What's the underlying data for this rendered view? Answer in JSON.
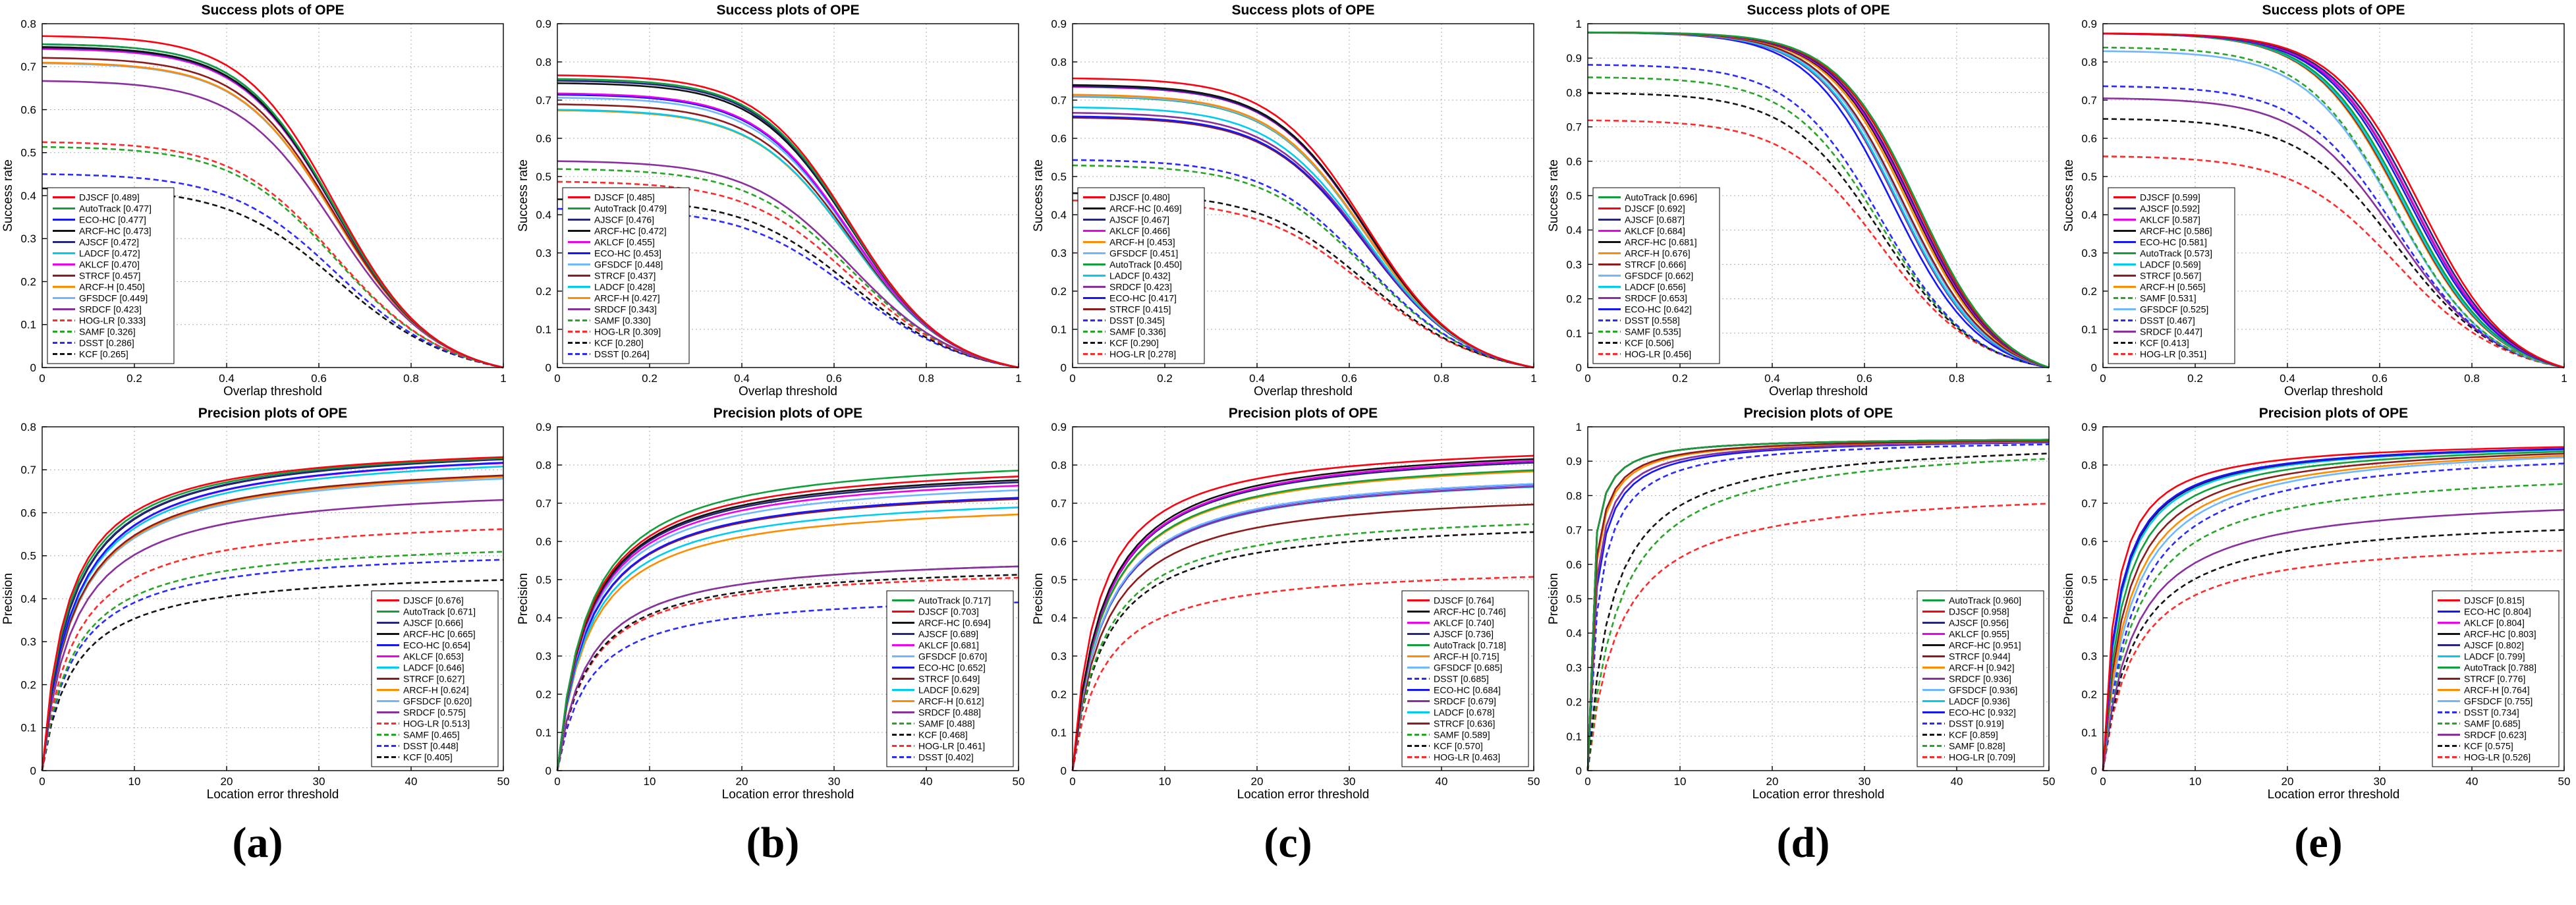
{
  "figure": {
    "captions": [
      "(a)",
      "(b)",
      "(c)",
      "(d)",
      "(e)"
    ]
  },
  "tracker_styles": {
    "DJSCF": {
      "color": "#ff0010",
      "dash": false
    },
    "AutoTrack": {
      "color": "#109f3a",
      "dash": false
    },
    "ECO-HC": {
      "color": "#1515ff",
      "dash": false
    },
    "ARCF-HC": {
      "color": "#121212",
      "dash": false
    },
    "AJSCF": {
      "color": "#26267e",
      "dash": false
    },
    "LADCF": {
      "color": "#00cdee",
      "dash": false
    },
    "AKLCF": {
      "color": "#ee00ee",
      "dash": false
    },
    "STRCF": {
      "color": "#8e1b1b",
      "dash": false
    },
    "ARCF-H": {
      "color": "#ff8c00",
      "dash": false
    },
    "GFSDCF": {
      "color": "#6fb7ff",
      "dash": false
    },
    "SRDCF": {
      "color": "#8a2f9e",
      "dash": false
    },
    "HOG-LR": {
      "color": "#ff2a2a",
      "dash": true
    },
    "SAMF": {
      "color": "#27a527",
      "dash": true
    },
    "DSST": {
      "color": "#2a2aff",
      "dash": true
    },
    "KCF": {
      "color": "#141414",
      "dash": true
    }
  },
  "chart_data": [
    {
      "id": "success-a",
      "type": "line",
      "kind": "success",
      "title": "Success plots of OPE",
      "xlabel": "Overlap threshold",
      "ylabel": "Success rate",
      "xlim": [
        0,
        1
      ],
      "ylim": [
        0,
        0.8
      ],
      "xticks": [
        0,
        0.2,
        0.4,
        0.6,
        0.8,
        1
      ],
      "grid": true,
      "legend_position": "bottom-left",
      "series": [
        {
          "name": "DJSCF",
          "score": 0.489
        },
        {
          "name": "AutoTrack",
          "score": 0.477
        },
        {
          "name": "ECO-HC",
          "score": 0.477
        },
        {
          "name": "ARCF-HC",
          "score": 0.473
        },
        {
          "name": "AJSCF",
          "score": 0.472
        },
        {
          "name": "LADCF",
          "score": 0.472
        },
        {
          "name": "AKLCF",
          "score": 0.47
        },
        {
          "name": "STRCF",
          "score": 0.457
        },
        {
          "name": "ARCF-H",
          "score": 0.45
        },
        {
          "name": "GFSDCF",
          "score": 0.449
        },
        {
          "name": "SRDCF",
          "score": 0.423
        },
        {
          "name": "HOG-LR",
          "score": 0.333
        },
        {
          "name": "SAMF",
          "score": 0.326
        },
        {
          "name": "DSST",
          "score": 0.286
        },
        {
          "name": "KCF",
          "score": 0.265
        }
      ]
    },
    {
      "id": "success-b",
      "type": "line",
      "kind": "success",
      "title": "Success plots of OPE",
      "xlabel": "Overlap threshold",
      "ylabel": "Success rate",
      "xlim": [
        0,
        1
      ],
      "ylim": [
        0,
        0.9
      ],
      "xticks": [
        0,
        0.2,
        0.4,
        0.6,
        0.8,
        1
      ],
      "grid": true,
      "legend_position": "bottom-left",
      "series": [
        {
          "name": "DJSCF",
          "score": 0.485
        },
        {
          "name": "AutoTrack",
          "score": 0.479
        },
        {
          "name": "AJSCF",
          "score": 0.476
        },
        {
          "name": "ARCF-HC",
          "score": 0.472
        },
        {
          "name": "AKLCF",
          "score": 0.455
        },
        {
          "name": "ECO-HC",
          "score": 0.453
        },
        {
          "name": "GFSDCF",
          "score": 0.448
        },
        {
          "name": "STRCF",
          "score": 0.437
        },
        {
          "name": "LADCF",
          "score": 0.428
        },
        {
          "name": "ARCF-H",
          "score": 0.427
        },
        {
          "name": "SRDCF",
          "score": 0.343
        },
        {
          "name": "SAMF",
          "score": 0.33
        },
        {
          "name": "HOG-LR",
          "score": 0.309
        },
        {
          "name": "KCF",
          "score": 0.28
        },
        {
          "name": "DSST",
          "score": 0.264
        }
      ]
    },
    {
      "id": "success-c",
      "type": "line",
      "kind": "success",
      "title": "Success plots of OPE",
      "xlabel": "Overlap threshold",
      "ylabel": "Success rate",
      "xlim": [
        0,
        1
      ],
      "ylim": [
        0,
        0.9
      ],
      "xticks": [
        0,
        0.2,
        0.4,
        0.6,
        0.8,
        1
      ],
      "grid": true,
      "legend_position": "bottom-left",
      "series": [
        {
          "name": "DJSCF",
          "score": 0.48
        },
        {
          "name": "ARCF-HC",
          "score": 0.469
        },
        {
          "name": "AJSCF",
          "score": 0.467
        },
        {
          "name": "AKLCF",
          "score": 0.466
        },
        {
          "name": "ARCF-H",
          "score": 0.453
        },
        {
          "name": "GFSDCF",
          "score": 0.451
        },
        {
          "name": "AutoTrack",
          "score": 0.45
        },
        {
          "name": "LADCF",
          "score": 0.432
        },
        {
          "name": "SRDCF",
          "score": 0.423
        },
        {
          "name": "ECO-HC",
          "score": 0.417
        },
        {
          "name": "STRCF",
          "score": 0.415
        },
        {
          "name": "DSST",
          "score": 0.345
        },
        {
          "name": "SAMF",
          "score": 0.336
        },
        {
          "name": "KCF",
          "score": 0.29
        },
        {
          "name": "HOG-LR",
          "score": 0.278
        }
      ]
    },
    {
      "id": "success-d",
      "type": "line",
      "kind": "success",
      "title": "Success plots of OPE",
      "xlabel": "Overlap threshold",
      "ylabel": "Success rate",
      "xlim": [
        0,
        1
      ],
      "ylim": [
        0,
        1.0
      ],
      "xticks": [
        0,
        0.2,
        0.4,
        0.6,
        0.8,
        1
      ],
      "grid": true,
      "legend_position": "bottom-left",
      "series": [
        {
          "name": "AutoTrack",
          "score": 0.696
        },
        {
          "name": "DJSCF",
          "score": 0.692
        },
        {
          "name": "AJSCF",
          "score": 0.687
        },
        {
          "name": "AKLCF",
          "score": 0.684
        },
        {
          "name": "ARCF-HC",
          "score": 0.681
        },
        {
          "name": "ARCF-H",
          "score": 0.676
        },
        {
          "name": "STRCF",
          "score": 0.666
        },
        {
          "name": "GFSDCF",
          "score": 0.662
        },
        {
          "name": "LADCF",
          "score": 0.656
        },
        {
          "name": "SRDCF",
          "score": 0.653
        },
        {
          "name": "ECO-HC",
          "score": 0.642
        },
        {
          "name": "DSST",
          "score": 0.558
        },
        {
          "name": "SAMF",
          "score": 0.535
        },
        {
          "name": "KCF",
          "score": 0.506
        },
        {
          "name": "HOG-LR",
          "score": 0.456
        }
      ]
    },
    {
      "id": "success-e",
      "type": "line",
      "kind": "success",
      "title": "Success plots of OPE",
      "xlabel": "Overlap threshold",
      "ylabel": "Success rate",
      "xlim": [
        0,
        1
      ],
      "ylim": [
        0,
        0.9
      ],
      "xticks": [
        0,
        0.2,
        0.4,
        0.6,
        0.8,
        1
      ],
      "grid": true,
      "legend_position": "bottom-left",
      "series": [
        {
          "name": "DJSCF",
          "score": 0.599
        },
        {
          "name": "AJSCF",
          "score": 0.592
        },
        {
          "name": "AKLCF",
          "score": 0.587
        },
        {
          "name": "ARCF-HC",
          "score": 0.586
        },
        {
          "name": "ECO-HC",
          "score": 0.581
        },
        {
          "name": "AutoTrack",
          "score": 0.573
        },
        {
          "name": "LADCF",
          "score": 0.569
        },
        {
          "name": "STRCF",
          "score": 0.567
        },
        {
          "name": "ARCF-H",
          "score": 0.565
        },
        {
          "name": "SAMF",
          "score": 0.531
        },
        {
          "name": "GFSDCF",
          "score": 0.525
        },
        {
          "name": "DSST",
          "score": 0.467
        },
        {
          "name": "SRDCF",
          "score": 0.447
        },
        {
          "name": "KCF",
          "score": 0.413
        },
        {
          "name": "HOG-LR",
          "score": 0.351
        }
      ]
    },
    {
      "id": "precision-a",
      "type": "line",
      "kind": "precision",
      "title": "Precision plots of OPE",
      "xlabel": "Location error threshold",
      "ylabel": "Precision",
      "xlim": [
        0,
        50
      ],
      "ylim": [
        0,
        0.8
      ],
      "xticks": [
        0,
        10,
        20,
        30,
        40,
        50
      ],
      "grid": true,
      "legend_position": "bottom-right",
      "series": [
        {
          "name": "DJSCF",
          "score": 0.676
        },
        {
          "name": "AutoTrack",
          "score": 0.671
        },
        {
          "name": "AJSCF",
          "score": 0.666
        },
        {
          "name": "ARCF-HC",
          "score": 0.665
        },
        {
          "name": "ECO-HC",
          "score": 0.654
        },
        {
          "name": "AKLCF",
          "score": 0.653
        },
        {
          "name": "LADCF",
          "score": 0.646
        },
        {
          "name": "STRCF",
          "score": 0.627
        },
        {
          "name": "ARCF-H",
          "score": 0.624
        },
        {
          "name": "GFSDCF",
          "score": 0.62
        },
        {
          "name": "SRDCF",
          "score": 0.575
        },
        {
          "name": "HOG-LR",
          "score": 0.513
        },
        {
          "name": "SAMF",
          "score": 0.465
        },
        {
          "name": "DSST",
          "score": 0.448
        },
        {
          "name": "KCF",
          "score": 0.405
        }
      ]
    },
    {
      "id": "precision-b",
      "type": "line",
      "kind": "precision",
      "title": "Precision plots of OPE",
      "xlabel": "Location error threshold",
      "ylabel": "Precision",
      "xlim": [
        0,
        50
      ],
      "ylim": [
        0,
        0.9
      ],
      "xticks": [
        0,
        10,
        20,
        30,
        40,
        50
      ],
      "grid": true,
      "legend_position": "bottom-right",
      "series": [
        {
          "name": "AutoTrack",
          "score": 0.717
        },
        {
          "name": "DJSCF",
          "score": 0.703
        },
        {
          "name": "ARCF-HC",
          "score": 0.694
        },
        {
          "name": "AJSCF",
          "score": 0.689
        },
        {
          "name": "AKLCF",
          "score": 0.681
        },
        {
          "name": "GFSDCF",
          "score": 0.67
        },
        {
          "name": "ECO-HC",
          "score": 0.652
        },
        {
          "name": "STRCF",
          "score": 0.649
        },
        {
          "name": "LADCF",
          "score": 0.629
        },
        {
          "name": "ARCF-H",
          "score": 0.612
        },
        {
          "name": "SRDCF",
          "score": 0.488
        },
        {
          "name": "SAMF",
          "score": 0.488
        },
        {
          "name": "KCF",
          "score": 0.468
        },
        {
          "name": "HOG-LR",
          "score": 0.461
        },
        {
          "name": "DSST",
          "score": 0.402
        }
      ]
    },
    {
      "id": "precision-c",
      "type": "line",
      "kind": "precision",
      "title": "Precision plots of OPE",
      "xlabel": "Location error threshold",
      "ylabel": "Precision",
      "xlim": [
        0,
        50
      ],
      "ylim": [
        0,
        0.9
      ],
      "xticks": [
        0,
        10,
        20,
        30,
        40,
        50
      ],
      "grid": true,
      "legend_position": "bottom-right",
      "series": [
        {
          "name": "DJSCF",
          "score": 0.764
        },
        {
          "name": "ARCF-HC",
          "score": 0.746
        },
        {
          "name": "AKLCF",
          "score": 0.74
        },
        {
          "name": "AJSCF",
          "score": 0.736
        },
        {
          "name": "AutoTrack",
          "score": 0.718
        },
        {
          "name": "ARCF-H",
          "score": 0.715
        },
        {
          "name": "GFSDCF",
          "score": 0.685
        },
        {
          "name": "DSST",
          "score": 0.685
        },
        {
          "name": "ECO-HC",
          "score": 0.684
        },
        {
          "name": "SRDCF",
          "score": 0.679
        },
        {
          "name": "LADCF",
          "score": 0.678
        },
        {
          "name": "STRCF",
          "score": 0.636
        },
        {
          "name": "SAMF",
          "score": 0.589
        },
        {
          "name": "KCF",
          "score": 0.57
        },
        {
          "name": "HOG-LR",
          "score": 0.463
        }
      ]
    },
    {
      "id": "precision-d",
      "type": "line",
      "kind": "precision",
      "title": "Precision plots of OPE",
      "xlabel": "Location error threshold",
      "ylabel": "Precision",
      "xlim": [
        0,
        50
      ],
      "ylim": [
        0,
        1.0
      ],
      "xticks": [
        0,
        10,
        20,
        30,
        40,
        50
      ],
      "grid": true,
      "legend_position": "bottom-right",
      "series": [
        {
          "name": "AutoTrack",
          "score": 0.96
        },
        {
          "name": "DJSCF",
          "score": 0.958
        },
        {
          "name": "AJSCF",
          "score": 0.956
        },
        {
          "name": "AKLCF",
          "score": 0.955
        },
        {
          "name": "ARCF-HC",
          "score": 0.951
        },
        {
          "name": "STRCF",
          "score": 0.944
        },
        {
          "name": "ARCF-H",
          "score": 0.942
        },
        {
          "name": "SRDCF",
          "score": 0.936
        },
        {
          "name": "GFSDCF",
          "score": 0.936
        },
        {
          "name": "LADCF",
          "score": 0.936
        },
        {
          "name": "ECO-HC",
          "score": 0.932
        },
        {
          "name": "DSST",
          "score": 0.919
        },
        {
          "name": "KCF",
          "score": 0.859
        },
        {
          "name": "SAMF",
          "score": 0.828
        },
        {
          "name": "HOG-LR",
          "score": 0.709
        }
      ]
    },
    {
      "id": "precision-e",
      "type": "line",
      "kind": "precision",
      "title": "Precision plots of OPE",
      "xlabel": "Location error threshold",
      "ylabel": "Precision",
      "xlim": [
        0,
        50
      ],
      "ylim": [
        0,
        0.9
      ],
      "xticks": [
        0,
        10,
        20,
        30,
        40,
        50
      ],
      "grid": true,
      "legend_position": "bottom-right",
      "series": [
        {
          "name": "DJSCF",
          "score": 0.815
        },
        {
          "name": "ECO-HC",
          "score": 0.804
        },
        {
          "name": "AKLCF",
          "score": 0.804
        },
        {
          "name": "ARCF-HC",
          "score": 0.803
        },
        {
          "name": "AJSCF",
          "score": 0.802
        },
        {
          "name": "LADCF",
          "score": 0.799
        },
        {
          "name": "AutoTrack",
          "score": 0.788
        },
        {
          "name": "STRCF",
          "score": 0.776
        },
        {
          "name": "ARCF-H",
          "score": 0.764
        },
        {
          "name": "GFSDCF",
          "score": 0.755
        },
        {
          "name": "DSST",
          "score": 0.734
        },
        {
          "name": "SAMF",
          "score": 0.685
        },
        {
          "name": "SRDCF",
          "score": 0.623
        },
        {
          "name": "KCF",
          "score": 0.575
        },
        {
          "name": "HOG-LR",
          "score": 0.526
        }
      ]
    }
  ]
}
